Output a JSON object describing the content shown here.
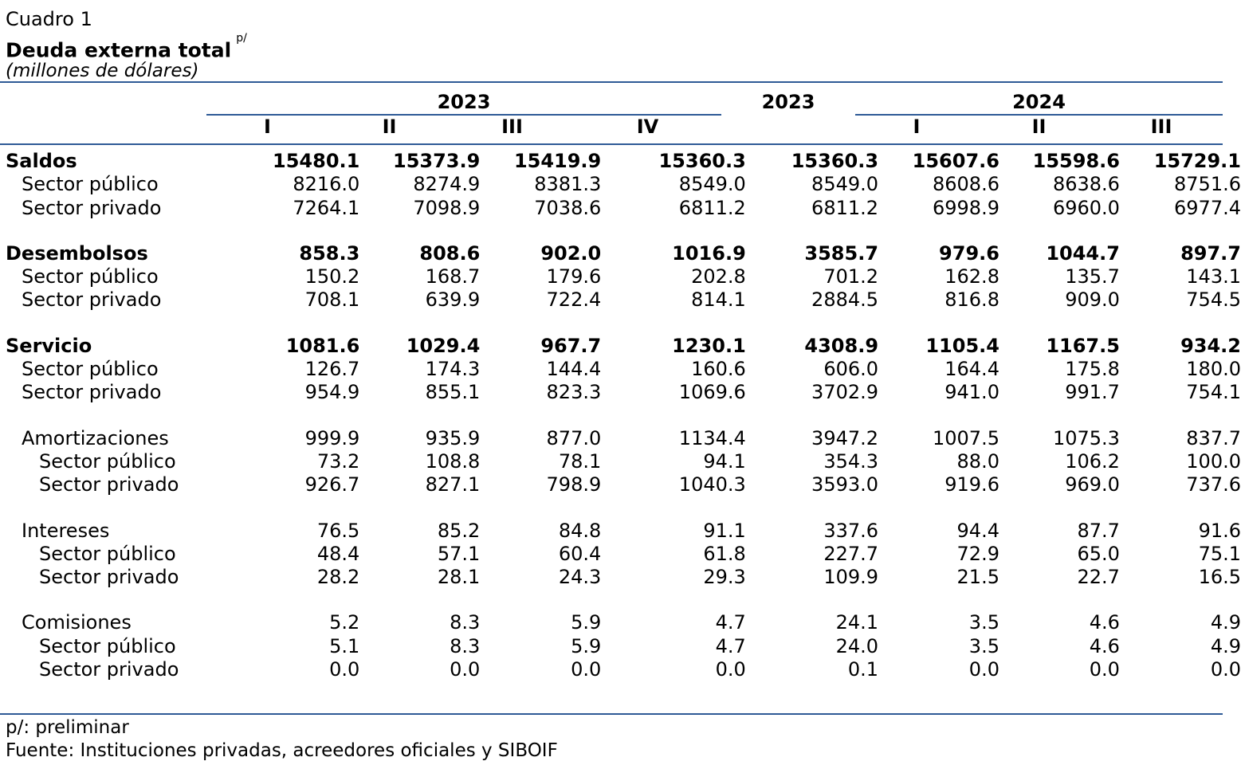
{
  "header": {
    "caption": "Cuadro 1",
    "title": "Deuda externa total",
    "title_note": "p/",
    "units": "(millones de dólares)"
  },
  "columns": {
    "year_2023_group": "2023",
    "year_2023_annual": "2023",
    "year_2024_group": "2024",
    "quarters_2023": [
      "I",
      "II",
      "III",
      "IV"
    ],
    "quarters_2024": [
      "I",
      "II",
      "III"
    ]
  },
  "rows": [
    {
      "label": "Saldos",
      "level": 0,
      "bold": true,
      "values": [
        "15480.1",
        "15373.9",
        "15419.9",
        "15360.3",
        "15360.3",
        "15607.6",
        "15598.6",
        "15729.1"
      ]
    },
    {
      "label": "Sector público",
      "level": 1,
      "bold": false,
      "values": [
        "8216.0",
        "8274.9",
        "8381.3",
        "8549.0",
        "8549.0",
        "8608.6",
        "8638.6",
        "8751.6"
      ]
    },
    {
      "label": "Sector privado",
      "level": 1,
      "bold": false,
      "values": [
        "7264.1",
        "7098.9",
        "7038.6",
        "6811.2",
        "6811.2",
        "6998.9",
        "6960.0",
        "6977.4"
      ]
    },
    {
      "gap": true
    },
    {
      "label": "Desembolsos",
      "level": 0,
      "bold": true,
      "values": [
        "858.3",
        "808.6",
        "902.0",
        "1016.9",
        "3585.7",
        "979.6",
        "1044.7",
        "897.7"
      ]
    },
    {
      "label": "Sector público",
      "level": 1,
      "bold": false,
      "values": [
        "150.2",
        "168.7",
        "179.6",
        "202.8",
        "701.2",
        "162.8",
        "135.7",
        "143.1"
      ]
    },
    {
      "label": "Sector privado",
      "level": 1,
      "bold": false,
      "values": [
        "708.1",
        "639.9",
        "722.4",
        "814.1",
        "2884.5",
        "816.8",
        "909.0",
        "754.5"
      ]
    },
    {
      "gap": true
    },
    {
      "label": "Servicio",
      "level": 0,
      "bold": true,
      "values": [
        "1081.6",
        "1029.4",
        "967.7",
        "1230.1",
        "4308.9",
        "1105.4",
        "1167.5",
        "934.2"
      ]
    },
    {
      "label": "Sector público",
      "level": 1,
      "bold": false,
      "values": [
        "126.7",
        "174.3",
        "144.4",
        "160.6",
        "606.0",
        "164.4",
        "175.8",
        "180.0"
      ]
    },
    {
      "label": "Sector privado",
      "level": 1,
      "bold": false,
      "values": [
        "954.9",
        "855.1",
        "823.3",
        "1069.6",
        "3702.9",
        "941.0",
        "991.7",
        "754.1"
      ]
    },
    {
      "gap": true
    },
    {
      "label": "Amortizaciones",
      "level": 1,
      "bold": false,
      "values": [
        "999.9",
        "935.9",
        "877.0",
        "1134.4",
        "3947.2",
        "1007.5",
        "1075.3",
        "837.7"
      ]
    },
    {
      "label": "Sector público",
      "level": 2,
      "bold": false,
      "values": [
        "73.2",
        "108.8",
        "78.1",
        "94.1",
        "354.3",
        "88.0",
        "106.2",
        "100.0"
      ]
    },
    {
      "label": "Sector privado",
      "level": 2,
      "bold": false,
      "values": [
        "926.7",
        "827.1",
        "798.9",
        "1040.3",
        "3593.0",
        "919.6",
        "969.0",
        "737.6"
      ]
    },
    {
      "gap": true
    },
    {
      "label": "Intereses",
      "level": 1,
      "bold": false,
      "values": [
        "76.5",
        "85.2",
        "84.8",
        "91.1",
        "337.6",
        "94.4",
        "87.7",
        "91.6"
      ]
    },
    {
      "label": "Sector público",
      "level": 2,
      "bold": false,
      "values": [
        "48.4",
        "57.1",
        "60.4",
        "61.8",
        "227.7",
        "72.9",
        "65.0",
        "75.1"
      ]
    },
    {
      "label": "Sector privado",
      "level": 2,
      "bold": false,
      "values": [
        "28.2",
        "28.1",
        "24.3",
        "29.3",
        "109.9",
        "21.5",
        "22.7",
        "16.5"
      ]
    },
    {
      "gap": true
    },
    {
      "label": "Comisiones",
      "level": 1,
      "bold": false,
      "values": [
        "5.2",
        "8.3",
        "5.9",
        "4.7",
        "24.1",
        "3.5",
        "4.6",
        "4.9"
      ]
    },
    {
      "label": "Sector público",
      "level": 2,
      "bold": false,
      "values": [
        "5.1",
        "8.3",
        "5.9",
        "4.7",
        "24.0",
        "3.5",
        "4.6",
        "4.9"
      ]
    },
    {
      "label": "Sector privado",
      "level": 2,
      "bold": false,
      "values": [
        "0.0",
        "0.0",
        "0.0",
        "0.0",
        "0.1",
        "0.0",
        "0.0",
        "0.0"
      ]
    }
  ],
  "footer": {
    "note": "p/: preliminar",
    "source": "Fuente: Instituciones privadas, acreedores oficiales y SIBOIF"
  },
  "colors": {
    "rule": "#2e5a96",
    "text": "#000000"
  }
}
